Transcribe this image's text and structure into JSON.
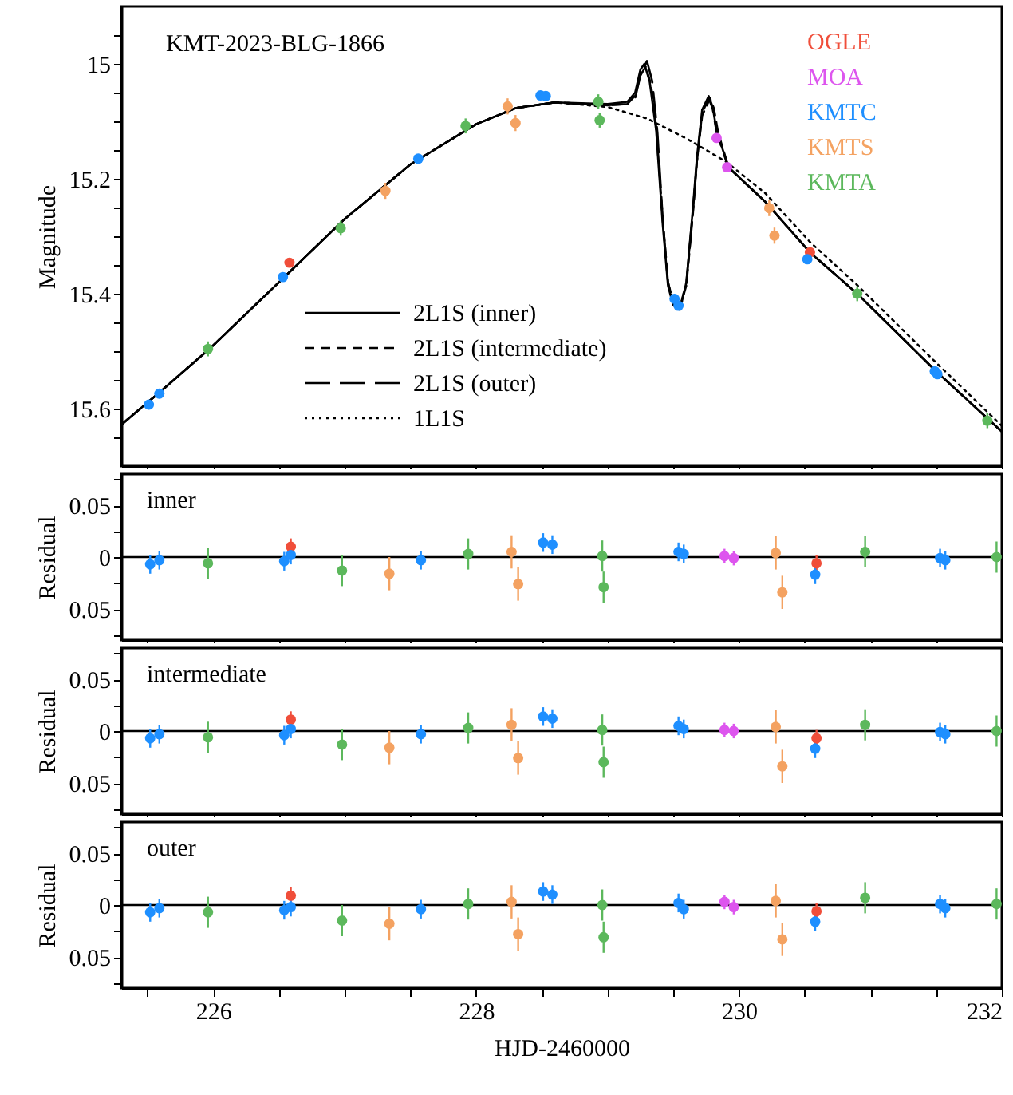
{
  "chart_data": [
    {
      "type": "scatter",
      "title": "KMT-2023-BLG-1866",
      "ylabel": "Magnitude",
      "xlim": [
        225.3,
        232
      ],
      "xticks": [
        {
          "value": 225.5,
          "label": null
        },
        226,
        {
          "value": 226.5,
          "label": null
        },
        {
          "value": 227,
          "label": null
        },
        {
          "value": 227.5,
          "label": null
        },
        228,
        {
          "value": 228.5,
          "label": null
        },
        {
          "value": 229,
          "label": null
        },
        {
          "value": 229.5,
          "label": null
        },
        230,
        {
          "value": 230.5,
          "label": null
        },
        {
          "value": 231,
          "label": null
        },
        {
          "value": 231.5,
          "label": null
        },
        232
      ],
      "ylim": [
        15.7,
        14.9
      ],
      "yticks": [
        {
          "value": 14.95,
          "label": null
        },
        15,
        {
          "value": 15.05,
          "label": null
        },
        {
          "value": 15.1,
          "label": null
        },
        {
          "value": 15.15,
          "label": null
        },
        15.2,
        {
          "value": 15.25,
          "label": null
        },
        {
          "value": 15.3,
          "label": null
        },
        {
          "value": 15.35,
          "label": null
        },
        15.4,
        {
          "value": 15.45,
          "label": null
        },
        {
          "value": 15.5,
          "label": null
        },
        {
          "value": 15.55,
          "label": null
        },
        15.6,
        {
          "value": 15.65,
          "label": null
        }
      ],
      "tick_labels": "y",
      "legend": "bottom left",
      "marker": "circle",
      "series": [
        {
          "name": "2L1S (inner)",
          "type": "line",
          "line_style": "solid",
          "marker": "none",
          "color": "#000000",
          "x": [
            225.3,
            225.6,
            226.0,
            226.5,
            227.0,
            227.5,
            228.0,
            228.3,
            228.6,
            229.0,
            229.15,
            229.21,
            229.25,
            229.28,
            229.32,
            229.37,
            229.42,
            229.46,
            229.5,
            229.55,
            229.6,
            229.65,
            229.68,
            229.72,
            229.77,
            229.8,
            229.83,
            229.92,
            230.2,
            230.54,
            230.9,
            231.5,
            232.0
          ],
          "values": [
            15.628,
            15.57,
            15.49,
            15.38,
            15.27,
            15.175,
            15.105,
            15.077,
            15.067,
            15.07,
            15.066,
            15.05,
            15.01,
            15.0,
            15.03,
            15.116,
            15.28,
            15.386,
            15.42,
            15.428,
            15.38,
            15.25,
            15.163,
            15.08,
            15.056,
            15.075,
            15.116,
            15.18,
            15.24,
            15.328,
            15.4,
            15.535,
            15.64
          ]
        },
        {
          "name": "2L1S (intermediate)",
          "type": "line",
          "line_style": "dashed",
          "marker": "none",
          "color": "#000000",
          "x": [
            225.3,
            225.6,
            226.0,
            226.5,
            227.0,
            227.5,
            228.0,
            228.3,
            228.6,
            229.0,
            229.15,
            229.21,
            229.25,
            229.29,
            229.33,
            229.37,
            229.42,
            229.46,
            229.5,
            229.55,
            229.6,
            229.65,
            229.68,
            229.72,
            229.78,
            229.81,
            229.84,
            229.92,
            230.2,
            230.54,
            230.9,
            231.5,
            232.0
          ],
          "values": [
            15.628,
            15.57,
            15.49,
            15.38,
            15.27,
            15.175,
            15.105,
            15.077,
            15.067,
            15.072,
            15.07,
            15.055,
            15.02,
            15.005,
            15.035,
            15.11,
            15.27,
            15.38,
            15.418,
            15.426,
            15.385,
            15.26,
            15.17,
            15.09,
            15.06,
            15.078,
            15.118,
            15.18,
            15.24,
            15.328,
            15.4,
            15.535,
            15.64
          ]
        },
        {
          "name": "2L1S (outer)",
          "type": "line",
          "line_style": "dashed",
          "marker": "none",
          "color": "#000000",
          "x": [
            225.3,
            225.6,
            226.0,
            226.5,
            227.0,
            227.5,
            228.0,
            228.3,
            228.6,
            229.0,
            229.15,
            229.21,
            229.25,
            229.3,
            229.34,
            229.38,
            229.42,
            229.46,
            229.5,
            229.55,
            229.6,
            229.65,
            229.68,
            229.72,
            229.77,
            229.8,
            229.83,
            229.92,
            230.2,
            230.54,
            230.9,
            231.5,
            232.0
          ],
          "values": [
            15.628,
            15.57,
            15.49,
            15.38,
            15.27,
            15.175,
            15.105,
            15.077,
            15.067,
            15.072,
            15.07,
            15.06,
            15.02,
            14.995,
            15.03,
            15.12,
            15.27,
            15.38,
            15.415,
            15.425,
            15.38,
            15.255,
            15.17,
            15.085,
            15.06,
            15.078,
            15.12,
            15.18,
            15.24,
            15.328,
            15.4,
            15.535,
            15.64
          ]
        },
        {
          "name": "1L1S",
          "type": "line",
          "line_style": "dotted",
          "marker": "none",
          "color": "#000000",
          "x": [
            225.3,
            225.6,
            226.0,
            226.5,
            227.0,
            227.5,
            228.0,
            228.3,
            228.6,
            229.0,
            229.3,
            229.6,
            229.9,
            230.2,
            230.54,
            230.9,
            231.5,
            232.0
          ],
          "values": [
            15.628,
            15.57,
            15.49,
            15.38,
            15.27,
            15.175,
            15.105,
            15.077,
            15.067,
            15.075,
            15.095,
            15.13,
            15.17,
            15.225,
            15.31,
            15.385,
            15.52,
            15.63
          ]
        },
        {
          "name": "OGLE",
          "type": "scatter",
          "color": "#f04e3a",
          "x": [
            226.58,
            230.54
          ],
          "values": [
            15.346,
            15.328
          ],
          "errors": [
            0.005,
            0.005
          ]
        },
        {
          "name": "MOA",
          "type": "scatter",
          "color": "#dd55ee",
          "x": [
            229.83,
            229.91
          ],
          "values": [
            15.129,
            15.18
          ],
          "errors": [
            0.005,
            0.005
          ]
        },
        {
          "name": "KMTC",
          "type": "scatter",
          "color": "#1e8fff",
          "x": [
            225.51,
            225.59,
            226.53,
            227.56,
            228.49,
            228.53,
            229.51,
            229.54,
            230.52,
            231.49,
            231.51
          ],
          "values": [
            15.593,
            15.574,
            15.371,
            15.165,
            15.055,
            15.056,
            15.409,
            15.421,
            15.34,
            15.535,
            15.54
          ],
          "errors": [
            0.006,
            0.006,
            0.006,
            0.006,
            0.006,
            0.006,
            0.006,
            0.006,
            0.006,
            0.006,
            0.006
          ]
        },
        {
          "name": "KMTS",
          "type": "scatter",
          "color": "#f4a261",
          "x": [
            227.31,
            228.24,
            228.3,
            230.23,
            230.27
          ],
          "values": [
            15.221,
            15.074,
            15.103,
            15.251,
            15.299
          ],
          "errors": [
            0.014,
            0.014,
            0.014,
            0.014,
            0.014
          ]
        },
        {
          "name": "KMTA",
          "type": "scatter",
          "color": "#5cb85c",
          "x": [
            225.96,
            226.97,
            227.92,
            228.93,
            228.94,
            230.9,
            231.89
          ],
          "values": [
            15.496,
            15.286,
            15.108,
            15.066,
            15.098,
            15.4,
            15.621
          ],
          "errors": [
            0.013,
            0.013,
            0.013,
            0.013,
            0.013,
            0.013,
            0.013
          ]
        }
      ]
    },
    {
      "type": "scatter",
      "title": "inner",
      "ylabel": "Residual",
      "xlim": [
        225.3,
        232
      ],
      "xticks": [
        {
          "value": 225.5,
          "label": null
        },
        226,
        {
          "value": 226.5,
          "label": null
        },
        {
          "value": 227,
          "label": null
        },
        {
          "value": 227.5,
          "label": null
        },
        228,
        {
          "value": 228.5,
          "label": null
        },
        {
          "value": 229,
          "label": null
        },
        {
          "value": 229.5,
          "label": null
        },
        230,
        {
          "value": 230.5,
          "label": null
        },
        {
          "value": 231,
          "label": null
        },
        {
          "value": 231.5,
          "label": null
        },
        232
      ],
      "ylim": [
        -0.08,
        0.08
      ],
      "yticks": [
        {
          "value": -0.075,
          "label": null
        },
        {
          "value": -0.05,
          "label": "0.05"
        },
        {
          "value": -0.025,
          "label": null
        },
        0,
        {
          "value": 0.025,
          "label": null
        },
        0.05,
        {
          "value": 0.075,
          "label": null
        }
      ],
      "tick_labels": "y",
      "marker": "circle",
      "ref_lines": [
        {
          "axis": "y",
          "value": 0
        }
      ],
      "series": [
        {
          "type": "scatter",
          "color": "#f04e3a",
          "x": [
            226.59,
            230.59
          ],
          "values": [
            0.01,
            -0.006
          ],
          "errors": [
            0.008,
            0.008
          ]
        },
        {
          "type": "scatter",
          "color": "#dd55ee",
          "x": [
            229.89,
            229.96
          ],
          "values": [
            0.001,
            -0.001
          ],
          "errors": [
            0.007,
            0.007
          ]
        },
        {
          "type": "scatter",
          "color": "#1e8fff",
          "x": [
            225.52,
            225.59,
            226.54,
            226.59,
            227.58,
            228.51,
            228.58,
            229.54,
            229.58,
            230.58,
            231.53,
            231.57
          ],
          "values": [
            -0.007,
            -0.003,
            -0.004,
            0.002,
            -0.003,
            0.014,
            0.012,
            0.005,
            0.003,
            -0.017,
            -0.001,
            -0.003
          ],
          "errors": [
            0.009,
            0.009,
            0.009,
            0.009,
            0.009,
            0.009,
            0.009,
            0.009,
            0.009,
            0.009,
            0.009,
            0.009
          ]
        },
        {
          "type": "scatter",
          "color": "#f4a261",
          "x": [
            227.34,
            228.27,
            228.32,
            230.28,
            230.33
          ],
          "values": [
            -0.016,
            0.005,
            -0.026,
            0.004,
            -0.034
          ],
          "errors": [
            0.016,
            0.016,
            0.016,
            0.016,
            0.016
          ]
        },
        {
          "type": "scatter",
          "color": "#5cb85c",
          "x": [
            225.96,
            226.98,
            227.94,
            228.96,
            228.97,
            230.96,
            231.96
          ],
          "values": [
            -0.006,
            -0.013,
            0.003,
            0.001,
            -0.029,
            0.005,
            0.0
          ],
          "errors": [
            0.015,
            0.015,
            0.015,
            0.015,
            0.015,
            0.015,
            0.015
          ]
        }
      ]
    },
    {
      "type": "scatter",
      "title": "intermediate",
      "ylabel": "Residual",
      "xlim": [
        225.3,
        232
      ],
      "xticks": [
        {
          "value": 225.5,
          "label": null
        },
        226,
        {
          "value": 226.5,
          "label": null
        },
        {
          "value": 227,
          "label": null
        },
        {
          "value": 227.5,
          "label": null
        },
        228,
        {
          "value": 228.5,
          "label": null
        },
        {
          "value": 229,
          "label": null
        },
        {
          "value": 229.5,
          "label": null
        },
        230,
        {
          "value": 230.5,
          "label": null
        },
        {
          "value": 231,
          "label": null
        },
        {
          "value": 231.5,
          "label": null
        },
        232
      ],
      "ylim": [
        -0.08,
        0.08
      ],
      "yticks": [
        {
          "value": -0.075,
          "label": null
        },
        {
          "value": -0.05,
          "label": "0.05"
        },
        {
          "value": -0.025,
          "label": null
        },
        0,
        {
          "value": 0.025,
          "label": null
        },
        0.05,
        {
          "value": 0.075,
          "label": null
        }
      ],
      "tick_labels": "y",
      "marker": "circle",
      "ref_lines": [
        {
          "axis": "y",
          "value": 0
        }
      ],
      "series": [
        {
          "type": "scatter",
          "color": "#f04e3a",
          "x": [
            226.59,
            230.59
          ],
          "values": [
            0.011,
            -0.007
          ],
          "errors": [
            0.008,
            0.008
          ]
        },
        {
          "type": "scatter",
          "color": "#dd55ee",
          "x": [
            229.89,
            229.96
          ],
          "values": [
            0.001,
            0.0
          ],
          "errors": [
            0.007,
            0.007
          ]
        },
        {
          "type": "scatter",
          "color": "#1e8fff",
          "x": [
            225.52,
            225.59,
            226.54,
            226.59,
            227.58,
            228.51,
            228.58,
            229.54,
            229.58,
            230.58,
            231.53,
            231.57
          ],
          "values": [
            -0.007,
            -0.003,
            -0.004,
            0.002,
            -0.003,
            0.014,
            0.012,
            0.005,
            0.002,
            -0.017,
            -0.001,
            -0.003
          ],
          "errors": [
            0.009,
            0.009,
            0.009,
            0.009,
            0.009,
            0.009,
            0.009,
            0.009,
            0.009,
            0.009,
            0.009,
            0.009
          ]
        },
        {
          "type": "scatter",
          "color": "#f4a261",
          "x": [
            227.34,
            228.27,
            228.32,
            230.28,
            230.33
          ],
          "values": [
            -0.016,
            0.006,
            -0.026,
            0.004,
            -0.034
          ],
          "errors": [
            0.016,
            0.016,
            0.016,
            0.016,
            0.016
          ]
        },
        {
          "type": "scatter",
          "color": "#5cb85c",
          "x": [
            225.96,
            226.98,
            227.94,
            228.96,
            228.97,
            230.96,
            231.96
          ],
          "values": [
            -0.006,
            -0.013,
            0.003,
            0.001,
            -0.03,
            0.006,
            0.0
          ],
          "errors": [
            0.015,
            0.015,
            0.015,
            0.015,
            0.015,
            0.015,
            0.015
          ]
        }
      ]
    },
    {
      "type": "scatter",
      "title": "outer",
      "xlabel": "HJD-2460000",
      "ylabel": "Residual",
      "xlim": [
        225.3,
        232
      ],
      "xticks": [
        {
          "value": 225.5,
          "label": null
        },
        226,
        {
          "value": 226.5,
          "label": null
        },
        {
          "value": 227,
          "label": null
        },
        {
          "value": 227.5,
          "label": null
        },
        228,
        {
          "value": 228.5,
          "label": null
        },
        {
          "value": 229,
          "label": null
        },
        {
          "value": 229.5,
          "label": null
        },
        230,
        {
          "value": 230.5,
          "label": null
        },
        {
          "value": 231,
          "label": null
        },
        {
          "value": 231.5,
          "label": null
        },
        232
      ],
      "ylim": [
        -0.08,
        0.08
      ],
      "yticks": [
        {
          "value": -0.075,
          "label": null
        },
        {
          "value": -0.05,
          "label": "0.05"
        },
        {
          "value": -0.025,
          "label": null
        },
        0,
        {
          "value": 0.025,
          "label": null
        },
        0.05,
        {
          "value": 0.075,
          "label": null
        }
      ],
      "marker": "circle",
      "ref_lines": [
        {
          "axis": "y",
          "value": 0
        }
      ],
      "series": [
        {
          "type": "scatter",
          "color": "#f04e3a",
          "x": [
            226.59,
            230.59
          ],
          "values": [
            0.009,
            -0.006
          ],
          "errors": [
            0.008,
            0.008
          ]
        },
        {
          "type": "scatter",
          "color": "#dd55ee",
          "x": [
            229.89,
            229.96
          ],
          "values": [
            0.003,
            -0.002
          ],
          "errors": [
            0.007,
            0.007
          ]
        },
        {
          "type": "scatter",
          "color": "#1e8fff",
          "x": [
            225.52,
            225.59,
            226.54,
            226.59,
            227.58,
            228.51,
            228.58,
            229.54,
            229.58,
            230.58,
            231.53,
            231.57
          ],
          "values": [
            -0.007,
            -0.003,
            -0.005,
            -0.002,
            -0.004,
            0.013,
            0.01,
            0.002,
            -0.004,
            -0.016,
            0.001,
            -0.003
          ],
          "errors": [
            0.009,
            0.009,
            0.009,
            0.009,
            0.009,
            0.009,
            0.009,
            0.009,
            0.009,
            0.009,
            0.009,
            0.009
          ]
        },
        {
          "type": "scatter",
          "color": "#f4a261",
          "x": [
            227.34,
            228.27,
            228.32,
            230.28,
            230.33
          ],
          "values": [
            -0.018,
            0.003,
            -0.028,
            0.004,
            -0.033
          ],
          "errors": [
            0.016,
            0.016,
            0.016,
            0.016,
            0.016
          ]
        },
        {
          "type": "scatter",
          "color": "#5cb85c",
          "x": [
            225.96,
            226.98,
            227.94,
            228.96,
            228.97,
            230.96,
            231.96
          ],
          "values": [
            -0.007,
            -0.015,
            0.001,
            0.0,
            -0.031,
            0.007,
            0.001
          ],
          "errors": [
            0.015,
            0.015,
            0.015,
            0.015,
            0.015,
            0.015,
            0.015
          ]
        }
      ]
    }
  ]
}
